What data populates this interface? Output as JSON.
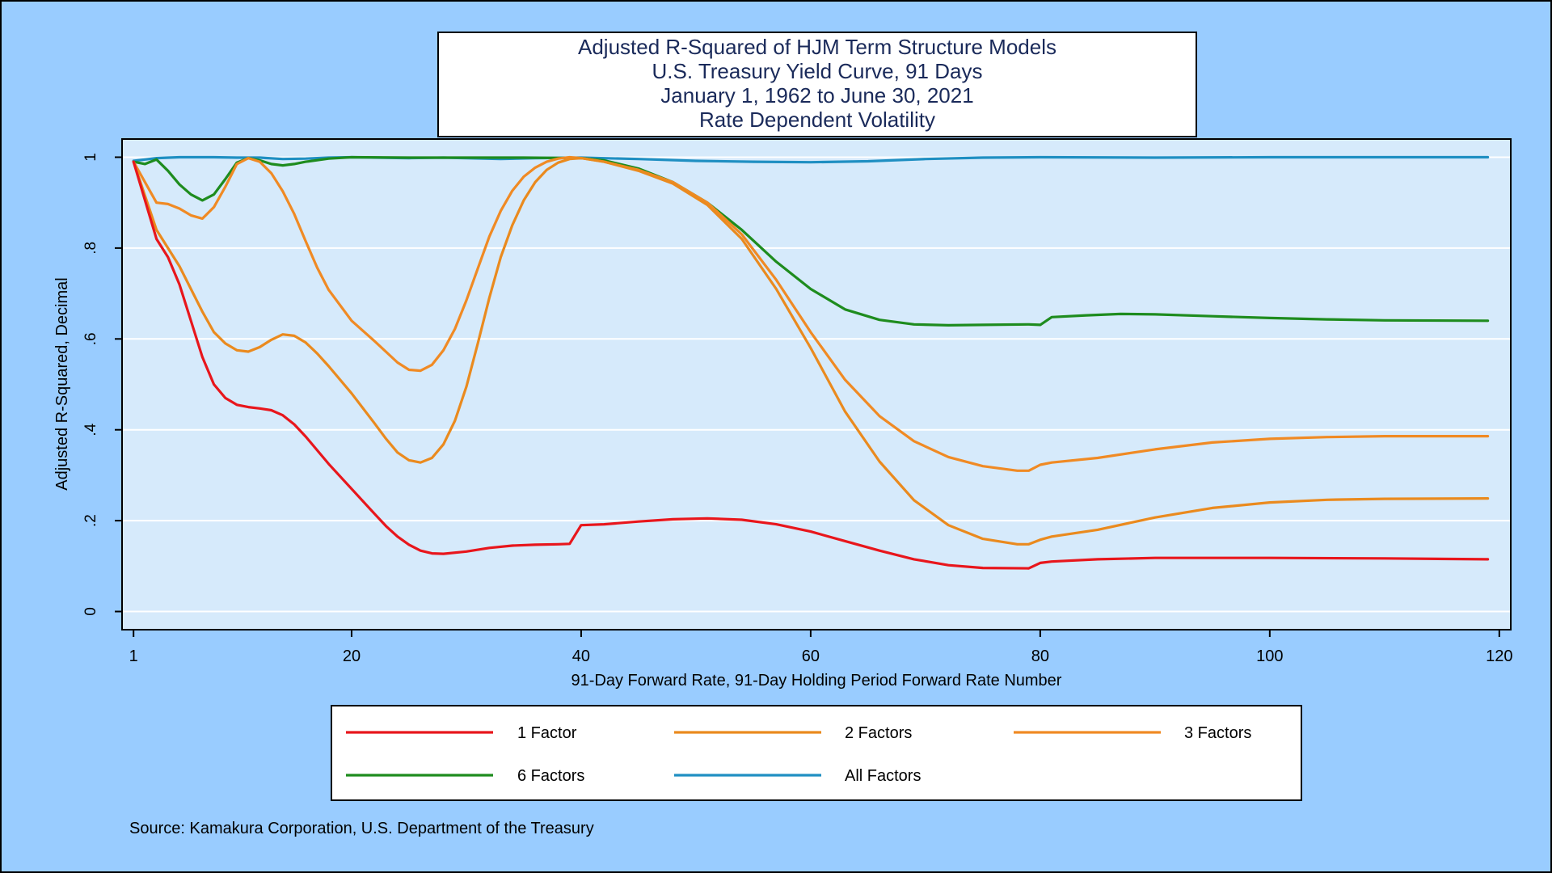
{
  "chart_data": {
    "type": "line",
    "title_lines": [
      "Adjusted R-Squared of HJM Term Structure Models",
      "U.S. Treasury Yield Curve, 91 Days",
      "January 1, 1962 to June 30, 2021",
      "Rate Dependent Volatility"
    ],
    "xlabel": "91-Day Forward Rate, 91-Day Holding Period Forward Rate Number",
    "ylabel": "Adjusted R-Squared, Decimal",
    "xlim": [
      0,
      121
    ],
    "ylim": [
      -0.04,
      1.04
    ],
    "x_ticks": [
      1,
      20,
      40,
      60,
      80,
      100,
      120
    ],
    "x_tick_labels": [
      "1",
      "20",
      "40",
      "60",
      "80",
      "100",
      "120"
    ],
    "y_ticks": [
      0,
      0.2,
      0.4,
      0.6,
      0.8,
      1
    ],
    "y_tick_labels": [
      "0",
      ".2",
      ".4",
      ".6",
      ".8",
      "1"
    ],
    "grid": "horizontal",
    "legend_position": "bottom",
    "source": "Source: Kamakura Corporation, U.S. Department of the Treasury",
    "colors": {
      "page_background": "#99CCFF",
      "plot_background": "#D6EAFB",
      "1 Factor": "#E8161C",
      "2 Factors": "#EA8A1E",
      "3 Factors": "#F08A24",
      "6 Factors": "#1E8C1E",
      "All Factors": "#1F8FC2"
    },
    "series": [
      {
        "name": "1 Factor",
        "points": [
          [
            1,
            0.99
          ],
          [
            3,
            0.82
          ],
          [
            4,
            0.78
          ],
          [
            5,
            0.72
          ],
          [
            6,
            0.64
          ],
          [
            7,
            0.56
          ],
          [
            8,
            0.5
          ],
          [
            9,
            0.47
          ],
          [
            10,
            0.455
          ],
          [
            11,
            0.45
          ],
          [
            12,
            0.447
          ],
          [
            13,
            0.443
          ],
          [
            14,
            0.432
          ],
          [
            15,
            0.412
          ],
          [
            16,
            0.385
          ],
          [
            17,
            0.355
          ],
          [
            18,
            0.325
          ],
          [
            20,
            0.27
          ],
          [
            22,
            0.215
          ],
          [
            23,
            0.188
          ],
          [
            24,
            0.165
          ],
          [
            25,
            0.147
          ],
          [
            26,
            0.134
          ],
          [
            27,
            0.128
          ],
          [
            28,
            0.127
          ],
          [
            30,
            0.132
          ],
          [
            32,
            0.14
          ],
          [
            34,
            0.145
          ],
          [
            36,
            0.147
          ],
          [
            38,
            0.148
          ],
          [
            39,
            0.149
          ],
          [
            40,
            0.19
          ],
          [
            42,
            0.192
          ],
          [
            45,
            0.198
          ],
          [
            48,
            0.203
          ],
          [
            51,
            0.205
          ],
          [
            54,
            0.202
          ],
          [
            57,
            0.192
          ],
          [
            60,
            0.176
          ],
          [
            63,
            0.155
          ],
          [
            66,
            0.134
          ],
          [
            69,
            0.115
          ],
          [
            72,
            0.102
          ],
          [
            75,
            0.096
          ],
          [
            79,
            0.095
          ],
          [
            80,
            0.107
          ],
          [
            81,
            0.11
          ],
          [
            85,
            0.115
          ],
          [
            90,
            0.118
          ],
          [
            100,
            0.118
          ],
          [
            110,
            0.117
          ],
          [
            119,
            0.115
          ]
        ]
      },
      {
        "name": "2 Factors",
        "points": [
          [
            1,
            0.99
          ],
          [
            3,
            0.84
          ],
          [
            4,
            0.8
          ],
          [
            5,
            0.76
          ],
          [
            6,
            0.71
          ],
          [
            7,
            0.66
          ],
          [
            8,
            0.615
          ],
          [
            9,
            0.59
          ],
          [
            10,
            0.575
          ],
          [
            11,
            0.572
          ],
          [
            12,
            0.582
          ],
          [
            13,
            0.598
          ],
          [
            14,
            0.61
          ],
          [
            15,
            0.607
          ],
          [
            16,
            0.592
          ],
          [
            17,
            0.568
          ],
          [
            18,
            0.54
          ],
          [
            20,
            0.48
          ],
          [
            22,
            0.414
          ],
          [
            23,
            0.38
          ],
          [
            24,
            0.35
          ],
          [
            25,
            0.333
          ],
          [
            26,
            0.328
          ],
          [
            27,
            0.338
          ],
          [
            28,
            0.368
          ],
          [
            29,
            0.42
          ],
          [
            30,
            0.495
          ],
          [
            31,
            0.59
          ],
          [
            32,
            0.69
          ],
          [
            33,
            0.78
          ],
          [
            34,
            0.85
          ],
          [
            35,
            0.905
          ],
          [
            36,
            0.945
          ],
          [
            37,
            0.972
          ],
          [
            38,
            0.988
          ],
          [
            39,
            0.996
          ],
          [
            40,
            0.998
          ],
          [
            42,
            0.99
          ],
          [
            45,
            0.97
          ],
          [
            48,
            0.942
          ],
          [
            51,
            0.895
          ],
          [
            54,
            0.82
          ],
          [
            57,
            0.71
          ],
          [
            60,
            0.58
          ],
          [
            63,
            0.44
          ],
          [
            66,
            0.33
          ],
          [
            69,
            0.245
          ],
          [
            72,
            0.19
          ],
          [
            75,
            0.16
          ],
          [
            78,
            0.148
          ],
          [
            79,
            0.148
          ],
          [
            80,
            0.158
          ],
          [
            81,
            0.165
          ],
          [
            85,
            0.18
          ],
          [
            90,
            0.207
          ],
          [
            95,
            0.228
          ],
          [
            100,
            0.24
          ],
          [
            105,
            0.246
          ],
          [
            110,
            0.248
          ],
          [
            119,
            0.249
          ]
        ]
      },
      {
        "name": "3 Factors",
        "points": [
          [
            1,
            0.99
          ],
          [
            3,
            0.9
          ],
          [
            4,
            0.897
          ],
          [
            5,
            0.887
          ],
          [
            6,
            0.872
          ],
          [
            7,
            0.865
          ],
          [
            8,
            0.89
          ],
          [
            9,
            0.935
          ],
          [
            10,
            0.985
          ],
          [
            11,
            0.998
          ],
          [
            12,
            0.99
          ],
          [
            13,
            0.965
          ],
          [
            14,
            0.925
          ],
          [
            15,
            0.875
          ],
          [
            16,
            0.815
          ],
          [
            17,
            0.757
          ],
          [
            18,
            0.708
          ],
          [
            20,
            0.64
          ],
          [
            22,
            0.595
          ],
          [
            24,
            0.548
          ],
          [
            25,
            0.532
          ],
          [
            26,
            0.53
          ],
          [
            27,
            0.543
          ],
          [
            28,
            0.575
          ],
          [
            29,
            0.622
          ],
          [
            30,
            0.685
          ],
          [
            31,
            0.755
          ],
          [
            32,
            0.825
          ],
          [
            33,
            0.882
          ],
          [
            34,
            0.926
          ],
          [
            35,
            0.957
          ],
          [
            36,
            0.977
          ],
          [
            37,
            0.99
          ],
          [
            38,
            0.997
          ],
          [
            39,
            1.0
          ],
          [
            40,
            0.998
          ],
          [
            42,
            0.99
          ],
          [
            45,
            0.972
          ],
          [
            48,
            0.945
          ],
          [
            51,
            0.9
          ],
          [
            54,
            0.83
          ],
          [
            57,
            0.73
          ],
          [
            60,
            0.615
          ],
          [
            63,
            0.51
          ],
          [
            66,
            0.43
          ],
          [
            69,
            0.375
          ],
          [
            72,
            0.34
          ],
          [
            75,
            0.32
          ],
          [
            78,
            0.31
          ],
          [
            79,
            0.31
          ],
          [
            80,
            0.323
          ],
          [
            81,
            0.328
          ],
          [
            85,
            0.338
          ],
          [
            90,
            0.357
          ],
          [
            95,
            0.372
          ],
          [
            100,
            0.38
          ],
          [
            105,
            0.384
          ],
          [
            110,
            0.386
          ],
          [
            119,
            0.386
          ]
        ]
      },
      {
        "name": "6 Factors",
        "points": [
          [
            1,
            0.99
          ],
          [
            2,
            0.985
          ],
          [
            3,
            0.995
          ],
          [
            4,
            0.97
          ],
          [
            5,
            0.94
          ],
          [
            6,
            0.918
          ],
          [
            7,
            0.905
          ],
          [
            8,
            0.918
          ],
          [
            9,
            0.952
          ],
          [
            10,
            0.988
          ],
          [
            11,
            0.998
          ],
          [
            12,
            0.993
          ],
          [
            13,
            0.985
          ],
          [
            14,
            0.982
          ],
          [
            15,
            0.985
          ],
          [
            16,
            0.99
          ],
          [
            18,
            0.997
          ],
          [
            20,
            1.0
          ],
          [
            25,
            0.999
          ],
          [
            30,
            0.999
          ],
          [
            35,
            0.999
          ],
          [
            40,
            0.998
          ],
          [
            42,
            0.993
          ],
          [
            45,
            0.975
          ],
          [
            48,
            0.945
          ],
          [
            51,
            0.9
          ],
          [
            54,
            0.84
          ],
          [
            57,
            0.77
          ],
          [
            60,
            0.71
          ],
          [
            63,
            0.665
          ],
          [
            66,
            0.642
          ],
          [
            69,
            0.632
          ],
          [
            72,
            0.63
          ],
          [
            75,
            0.631
          ],
          [
            79,
            0.632
          ],
          [
            80,
            0.631
          ],
          [
            81,
            0.648
          ],
          [
            84,
            0.652
          ],
          [
            87,
            0.655
          ],
          [
            90,
            0.654
          ],
          [
            95,
            0.65
          ],
          [
            100,
            0.646
          ],
          [
            105,
            0.643
          ],
          [
            110,
            0.641
          ],
          [
            119,
            0.64
          ]
        ]
      },
      {
        "name": "All Factors",
        "points": [
          [
            1,
            0.992
          ],
          [
            2,
            0.995
          ],
          [
            3,
            0.998
          ],
          [
            5,
            1.0
          ],
          [
            8,
            1.0
          ],
          [
            10,
            0.999
          ],
          [
            12,
            0.999
          ],
          [
            14,
            0.996
          ],
          [
            16,
            0.997
          ],
          [
            18,
            0.999
          ],
          [
            20,
            1.0
          ],
          [
            25,
            0.998
          ],
          [
            28,
            0.999
          ],
          [
            30,
            0.998
          ],
          [
            33,
            0.996
          ],
          [
            36,
            0.998
          ],
          [
            40,
            0.999
          ],
          [
            45,
            0.996
          ],
          [
            50,
            0.992
          ],
          [
            55,
            0.99
          ],
          [
            60,
            0.989
          ],
          [
            65,
            0.991
          ],
          [
            70,
            0.996
          ],
          [
            75,
            0.999
          ],
          [
            80,
            1.0
          ],
          [
            90,
            0.999
          ],
          [
            100,
            1.0
          ],
          [
            110,
            1.0
          ],
          [
            119,
            1.0
          ]
        ]
      }
    ]
  }
}
